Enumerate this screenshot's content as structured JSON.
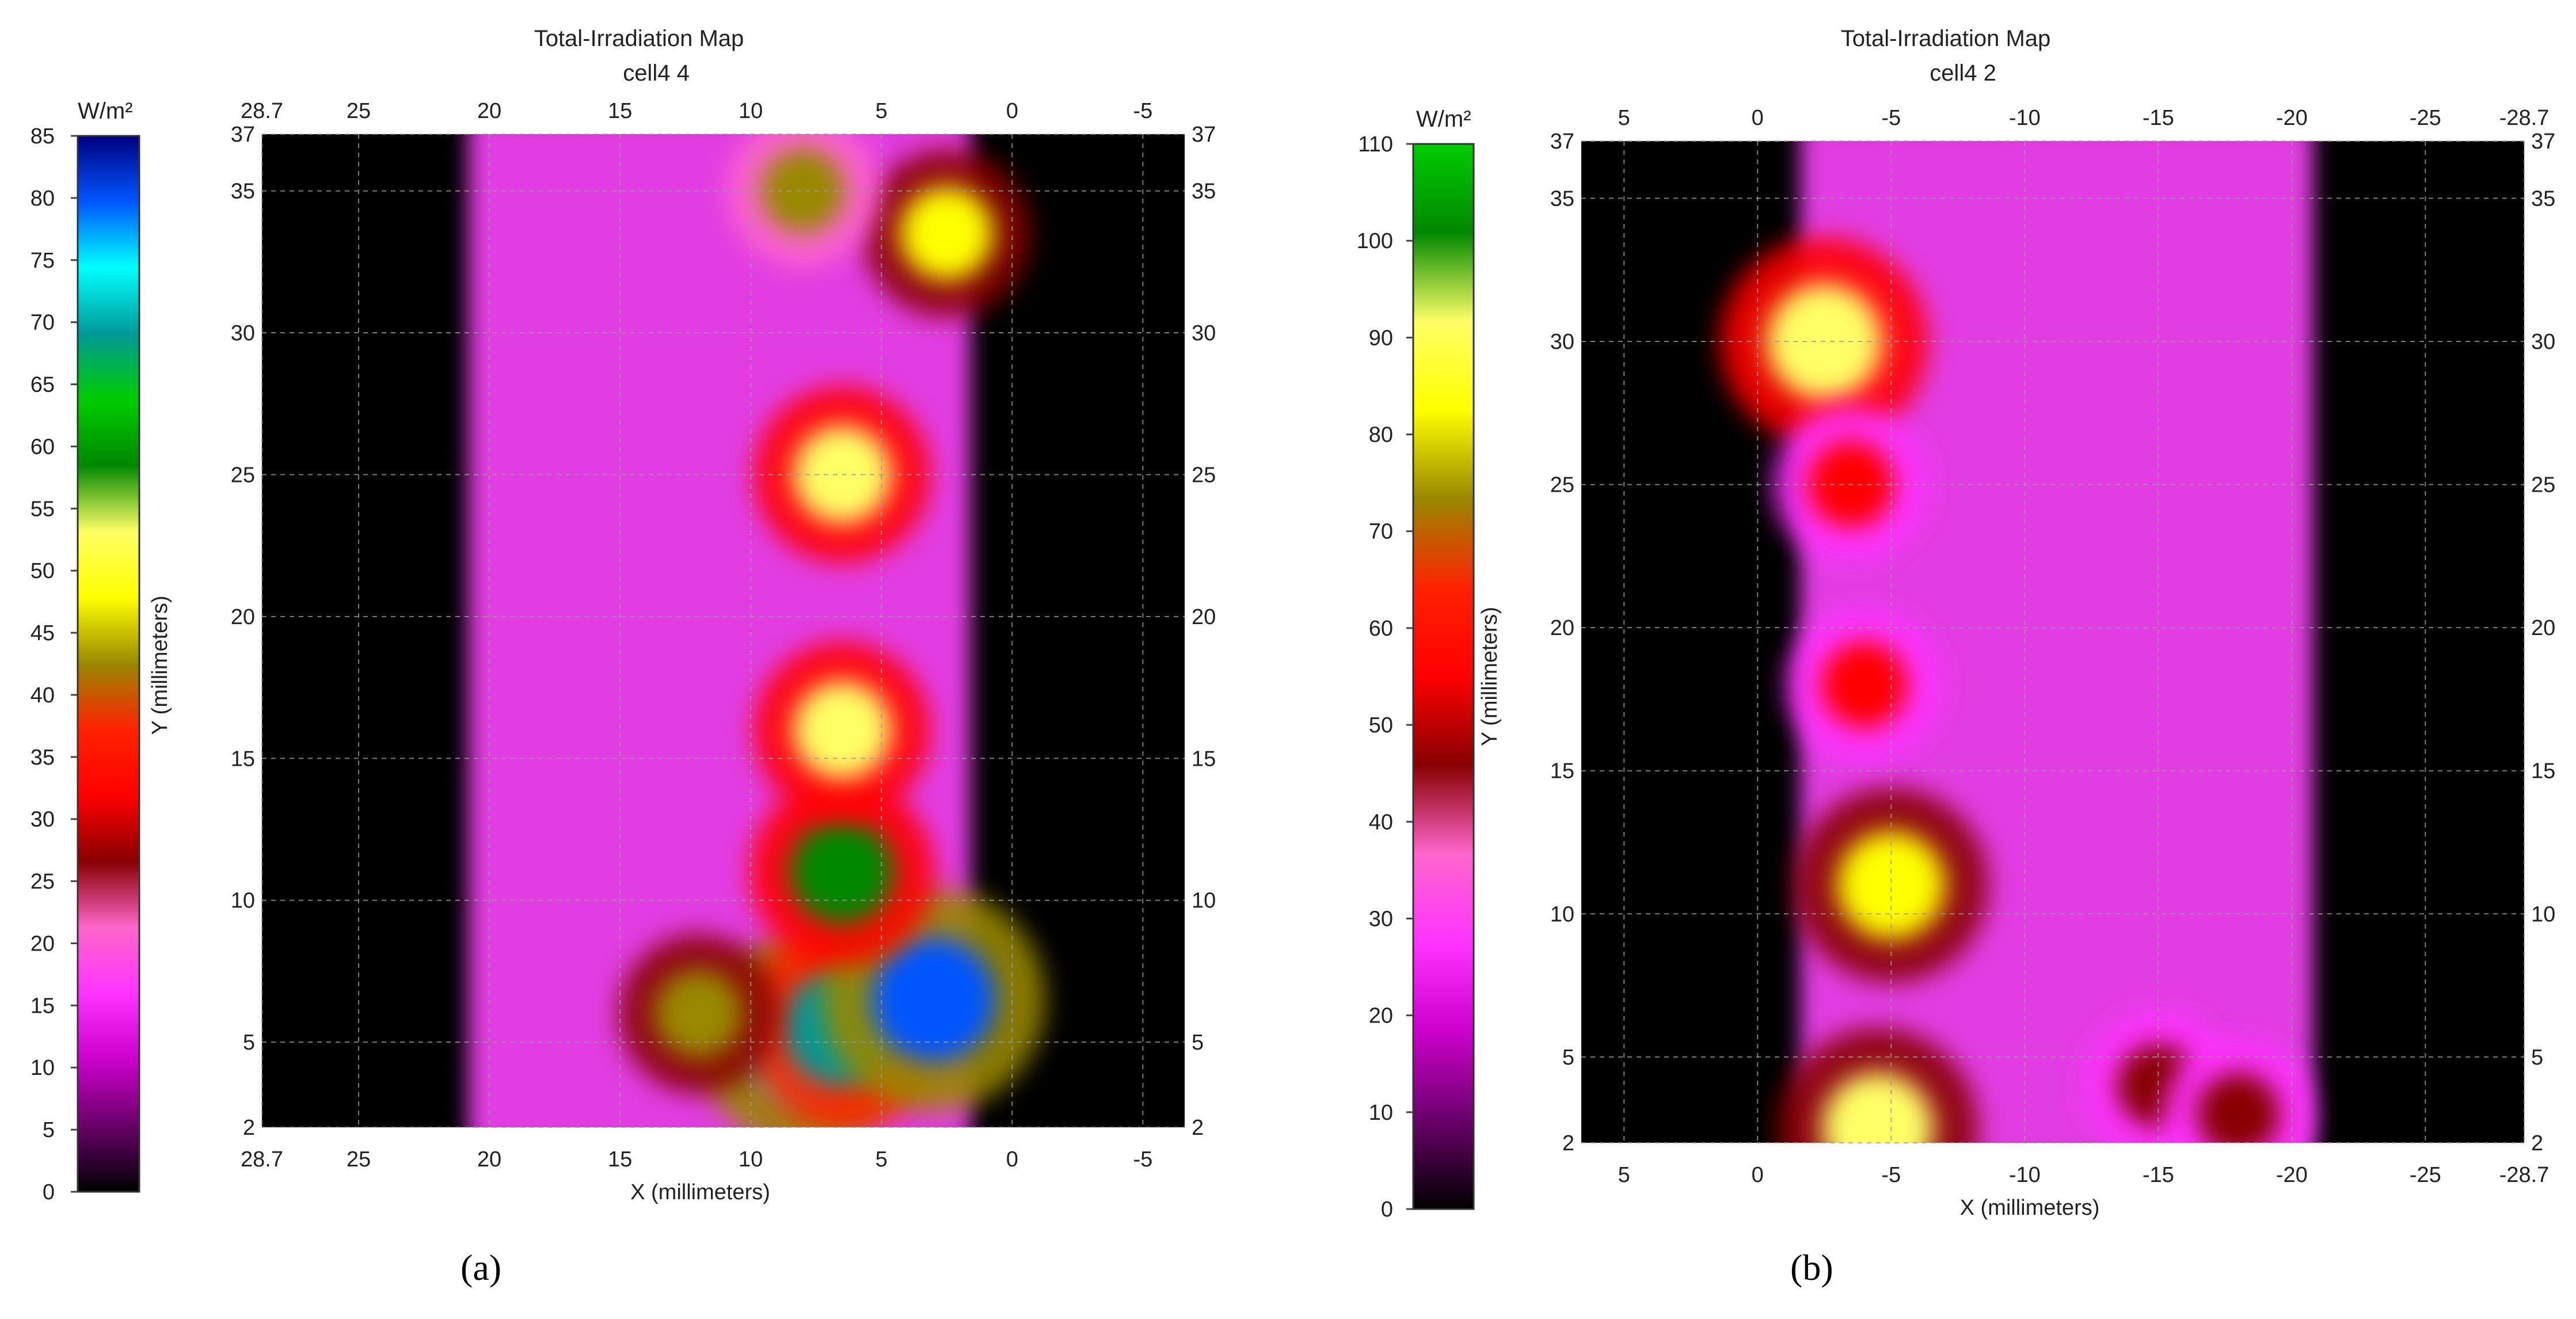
{
  "colors": {
    "background_map": "#000000",
    "gridline": "#9a9a9a",
    "scale_a": [
      "#000000",
      "#6a006a",
      "#cc00cc",
      "#ff33ff",
      "#ff66cc",
      "#880000",
      "#ff0000",
      "#ff2200",
      "#998800",
      "#ffff00",
      "#ffff66",
      "#008800",
      "#00cc00",
      "#009999",
      "#00ffff",
      "#0055ff",
      "#000080"
    ],
    "scale_b": [
      "#000000",
      "#6a006a",
      "#cc00cc",
      "#ff33ff",
      "#ff66cc",
      "#880000",
      "#ff0000",
      "#ff2200",
      "#998800",
      "#ffff00",
      "#ffff66",
      "#008800",
      "#00cc00"
    ]
  },
  "panels": [
    {
      "id": "a",
      "sublabel": "(a)"
    },
    {
      "id": "b",
      "sublabel": "(b)"
    }
  ],
  "chart_data": [
    {
      "type": "heatmap",
      "title": "Total-Irradiation Map",
      "subtitle": "cell4 4",
      "xlabel": "X (millimeters)",
      "ylabel": "Y (millimeters)",
      "colorbar_unit": "W/m²",
      "colorbar_range": [
        0,
        85
      ],
      "colorbar_ticks": [
        "0",
        "5",
        "10",
        "15",
        "20",
        "25",
        "30",
        "35",
        "40",
        "45",
        "50",
        "55",
        "60",
        "65",
        "70",
        "75",
        "80",
        "85"
      ],
      "x_range": [
        28.7,
        -6.6
      ],
      "y_range": [
        2,
        37
      ],
      "x_tick_labels": [
        "28.7",
        "25",
        "20",
        "15",
        "10",
        "5",
        "0",
        "-5"
      ],
      "x_tick_values": [
        28.7,
        25,
        20,
        15,
        10,
        5,
        0,
        -5
      ],
      "y_tick_labels": [
        "2",
        "5",
        "10",
        "15",
        "20",
        "25",
        "30",
        "35",
        "37"
      ],
      "y_tick_values": [
        2,
        5,
        10,
        15,
        20,
        25,
        30,
        35,
        37
      ],
      "grid": true,
      "cell_region_x": [
        20.8,
        1.6
      ],
      "hotspots": [
        {
          "x": 8,
          "y": 5,
          "value": 75
        },
        {
          "x": 6.5,
          "y": 5.5,
          "value": 70
        },
        {
          "x": 3,
          "y": 6.5,
          "value": 82
        },
        {
          "x": 6.5,
          "y": 11,
          "value": 60
        },
        {
          "x": 6.5,
          "y": 16,
          "value": 55
        },
        {
          "x": 6.5,
          "y": 25,
          "value": 55
        },
        {
          "x": 2.5,
          "y": 33.5,
          "value": 50
        },
        {
          "x": 12,
          "y": 6,
          "value": 45
        },
        {
          "x": 8,
          "y": 35,
          "value": 40
        }
      ]
    },
    {
      "type": "heatmap",
      "title": "Total-Irradiation Map",
      "subtitle": "cell4 2",
      "xlabel": "X (millimeters)",
      "ylabel": "Y (millimeters)",
      "colorbar_unit": "W/m²",
      "colorbar_range": [
        0,
        110
      ],
      "colorbar_ticks": [
        "0",
        "10",
        "20",
        "30",
        "40",
        "50",
        "60",
        "70",
        "80",
        "90",
        "100",
        "110"
      ],
      "x_range": [
        6.6,
        -28.7
      ],
      "y_range": [
        2,
        37
      ],
      "x_tick_labels": [
        "5",
        "0",
        "-5",
        "-10",
        "-15",
        "-20",
        "-25",
        "-28.7"
      ],
      "x_tick_values": [
        5,
        0,
        -5,
        -10,
        -15,
        -20,
        -25,
        -28.7
      ],
      "y_tick_labels": [
        "2",
        "5",
        "10",
        "15",
        "20",
        "25",
        "30",
        "35",
        "37"
      ],
      "y_tick_values": [
        2,
        5,
        10,
        15,
        20,
        25,
        30,
        35,
        37
      ],
      "grid": true,
      "cell_region_x": [
        -1.6,
        -20.8
      ],
      "hotspots": [
        {
          "x": -2.5,
          "y": 30,
          "value": 95
        },
        {
          "x": -4.5,
          "y": 2.5,
          "value": 90
        },
        {
          "x": -5,
          "y": 11,
          "value": 85
        },
        {
          "x": -3.5,
          "y": 25,
          "value": 55
        },
        {
          "x": -4,
          "y": 18,
          "value": 55
        },
        {
          "x": -15,
          "y": 4,
          "value": 50
        },
        {
          "x": -18,
          "y": 3,
          "value": 50
        }
      ]
    }
  ]
}
